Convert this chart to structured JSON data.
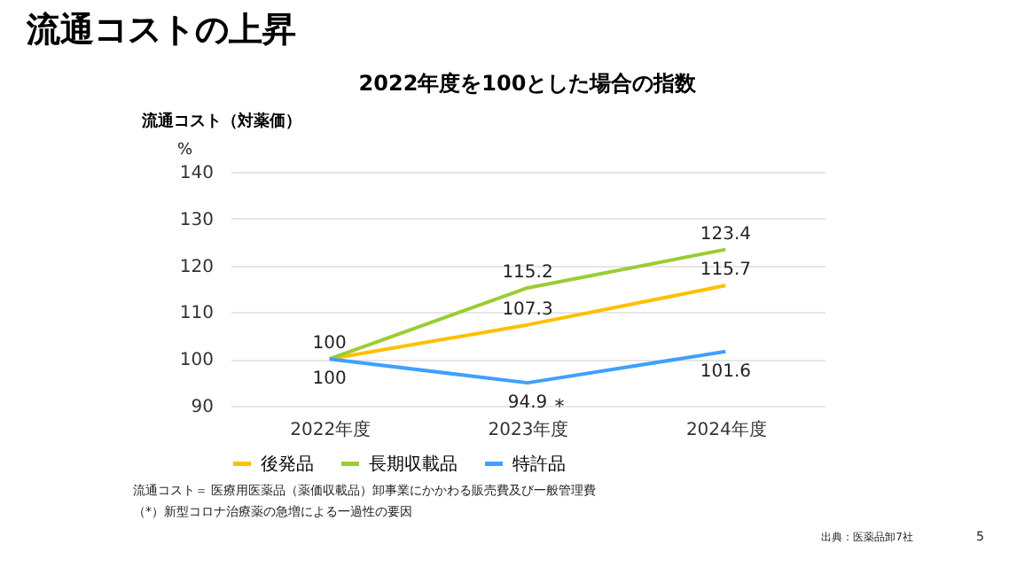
{
  "chart_data": {
    "type": "line",
    "title": "流通コストの上昇",
    "subtitle": "2022年度を100とした場合の指数",
    "ylabel": "流通コスト（対薬価）",
    "categories": [
      "2022年度",
      "2023年度",
      "2024年度"
    ],
    "series": [
      {
        "name": "後発品",
        "color": "#ffc000",
        "values": [
          100,
          107.3,
          115.7
        ],
        "value_labels": [
          null,
          "107.3",
          "115.7"
        ]
      },
      {
        "name": "長期収載品",
        "color": "#9acd32",
        "values": [
          100,
          115.2,
          123.4
        ],
        "value_labels": [
          "100",
          "115.2",
          "123.4"
        ]
      },
      {
        "name": "特許品",
        "color": "#3fa0ff",
        "values": [
          100,
          94.9,
          101.6
        ],
        "value_labels": [
          "100",
          "94.9",
          "101.6"
        ]
      }
    ],
    "ylim": [
      90,
      140
    ],
    "yticks": [
      90,
      100,
      110,
      120,
      130,
      140
    ],
    "grid": "y",
    "legend": "bottom",
    "marker": "none",
    "line_style": "solid",
    "annotations": [
      "%",
      "流通コスト＝ 医療用医薬品（薬価収載品）卸事業にかかわる販売費及び一般管理費",
      "（*）新型コロナ治療薬の急増による一過性の要因",
      "出典：医薬品卸7社",
      "5",
      {
        "text": "*",
        "x": "2023年度",
        "y": 94.9
      }
    ]
  }
}
